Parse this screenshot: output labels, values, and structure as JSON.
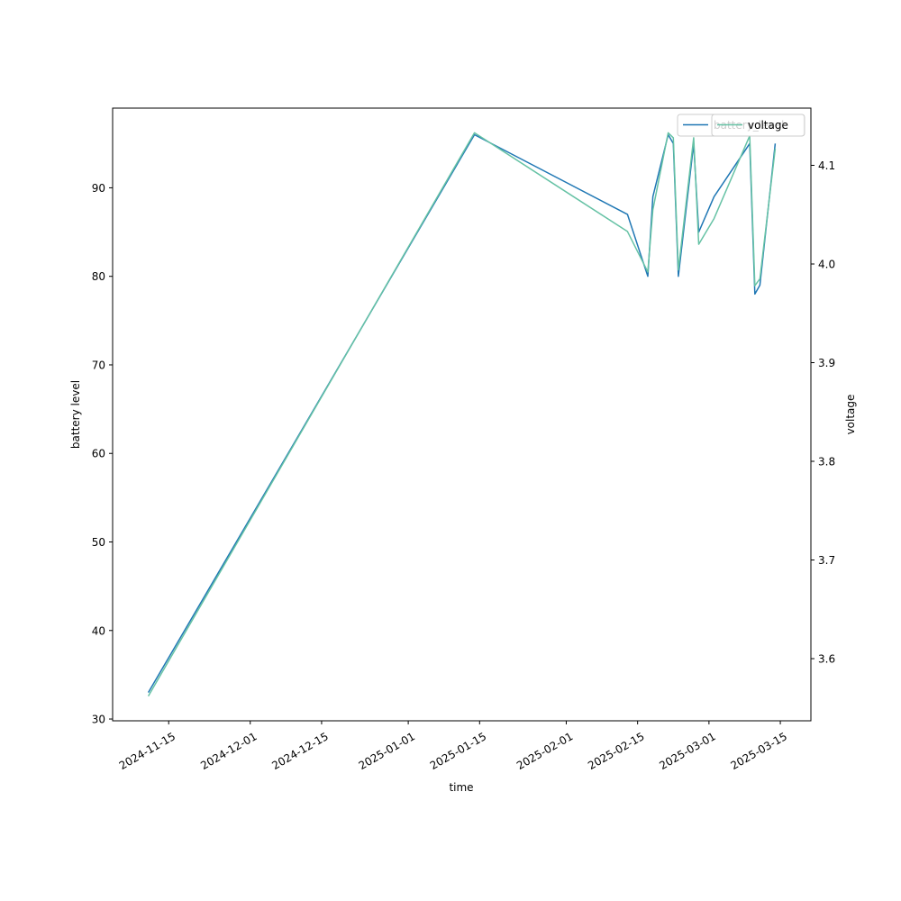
{
  "chart_data": {
    "type": "line",
    "title": "",
    "xlabel": "time",
    "ylabel": "battery level",
    "y2label": "voltage",
    "xlim": [
      "2024-11-04",
      "2025-03-21"
    ],
    "ylim": [
      29.8,
      99.0
    ],
    "y2lim": [
      3.537,
      4.158
    ],
    "x_ticks": [
      "2024-11-15",
      "2024-12-01",
      "2024-12-15",
      "2025-01-01",
      "2025-01-15",
      "2025-02-01",
      "2025-02-15",
      "2025-03-01",
      "2025-03-15"
    ],
    "y_ticks": [
      30,
      40,
      50,
      60,
      70,
      80,
      90
    ],
    "y2_ticks": [
      3.6,
      3.7,
      3.8,
      3.9,
      4.0,
      4.1
    ],
    "grid": false,
    "legend_position": "top-right",
    "series": [
      {
        "name": "battery_level",
        "axis": "left",
        "color": "#1f77b4",
        "x": [
          "2024-11-11",
          "2025-01-14",
          "2025-02-13",
          "2025-02-17",
          "2025-02-18",
          "2025-02-21",
          "2025-02-22",
          "2025-02-23",
          "2025-02-26",
          "2025-02-27",
          "2025-03-02",
          "2025-03-09",
          "2025-03-10",
          "2025-03-11",
          "2025-03-14"
        ],
        "values": [
          33,
          96,
          87,
          80,
          89,
          96,
          95,
          80,
          95,
          85,
          89,
          95,
          78,
          79,
          95
        ]
      },
      {
        "name": "voltage",
        "axis": "right",
        "color": "#66c2a5",
        "x": [
          "2024-11-11",
          "2025-01-14",
          "2025-02-13",
          "2025-02-17",
          "2025-02-18",
          "2025-02-21",
          "2025-02-22",
          "2025-02-23",
          "2025-02-26",
          "2025-02-27",
          "2025-03-02",
          "2025-03-09",
          "2025-03-10",
          "2025-03-11",
          "2025-03-14"
        ],
        "values": [
          3.562,
          4.133,
          4.033,
          3.992,
          4.055,
          4.133,
          4.128,
          3.994,
          4.128,
          4.02,
          4.046,
          4.13,
          3.978,
          3.985,
          4.117
        ]
      }
    ],
    "legends": [
      {
        "entries": [
          {
            "label": "battery_level",
            "color": "#1f77b4"
          }
        ]
      },
      {
        "entries": [
          {
            "label": "voltage",
            "color": "#66c2a5"
          }
        ]
      }
    ]
  }
}
